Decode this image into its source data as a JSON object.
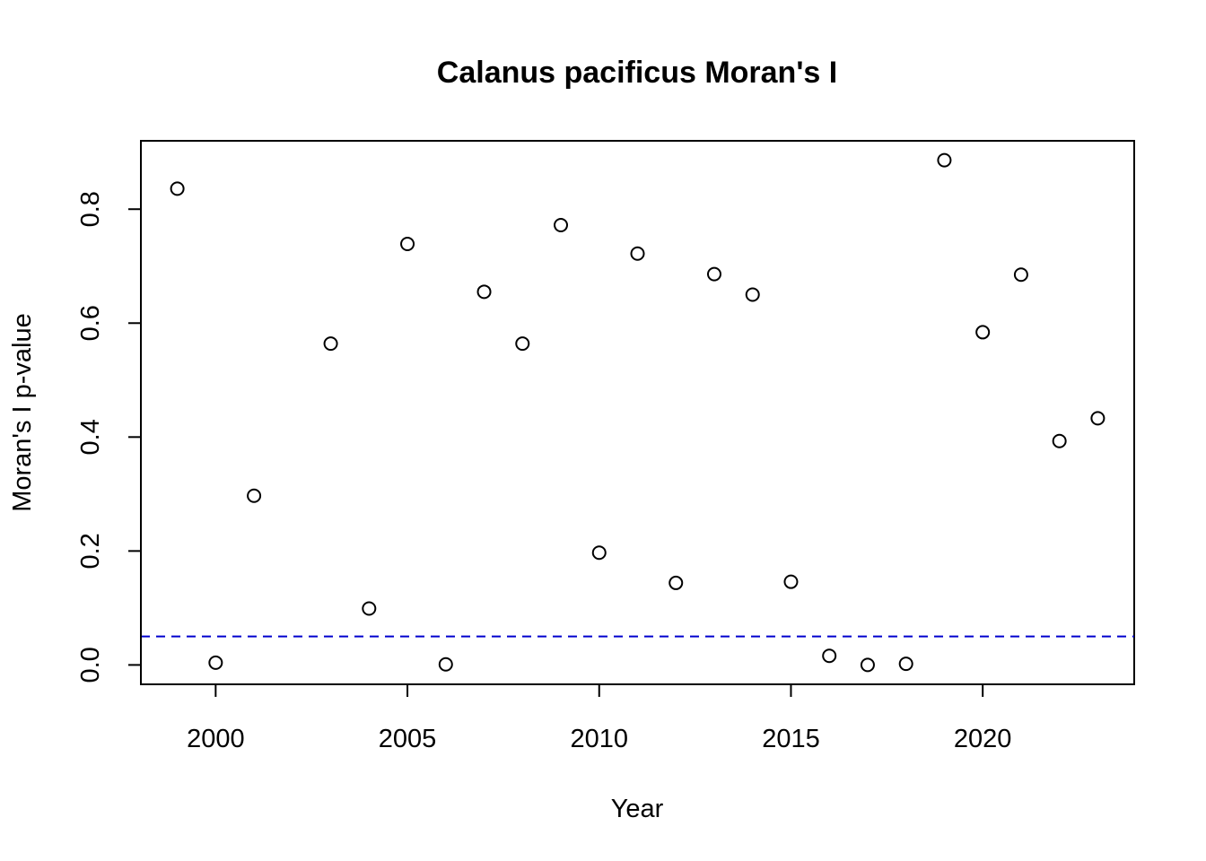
{
  "chart_data": {
    "type": "scatter",
    "title": "Calanus pacificus Moran's I",
    "xlabel": "Year",
    "ylabel": "Moran's I p-value",
    "xlim": [
      1998.05,
      2023.95
    ],
    "ylim": [
      -0.034,
      0.92
    ],
    "xticks": [
      2000,
      2005,
      2010,
      2015,
      2020
    ],
    "yticks": [
      0.0,
      0.2,
      0.4,
      0.6,
      0.8
    ],
    "ytick_labels": [
      "0.0",
      "0.2",
      "0.4",
      "0.6",
      "0.8"
    ],
    "grid": false,
    "legend": false,
    "point_color": "#000000",
    "reference_line": {
      "y": 0.05,
      "color": "#0000CD",
      "style": "dashed"
    },
    "x": [
      1999,
      2000,
      2001,
      2003,
      2004,
      2005,
      2006,
      2007,
      2008,
      2009,
      2010,
      2011,
      2012,
      2013,
      2014,
      2015,
      2016,
      2017,
      2018,
      2019,
      2020,
      2021,
      2022,
      2023
    ],
    "y": [
      0.836,
      0.004,
      0.297,
      0.564,
      0.099,
      0.739,
      0.001,
      0.655,
      0.564,
      0.772,
      0.197,
      0.722,
      0.144,
      0.686,
      0.65,
      0.146,
      0.016,
      0.0,
      0.002,
      0.886,
      0.584,
      0.685,
      0.393,
      0.433
    ]
  }
}
